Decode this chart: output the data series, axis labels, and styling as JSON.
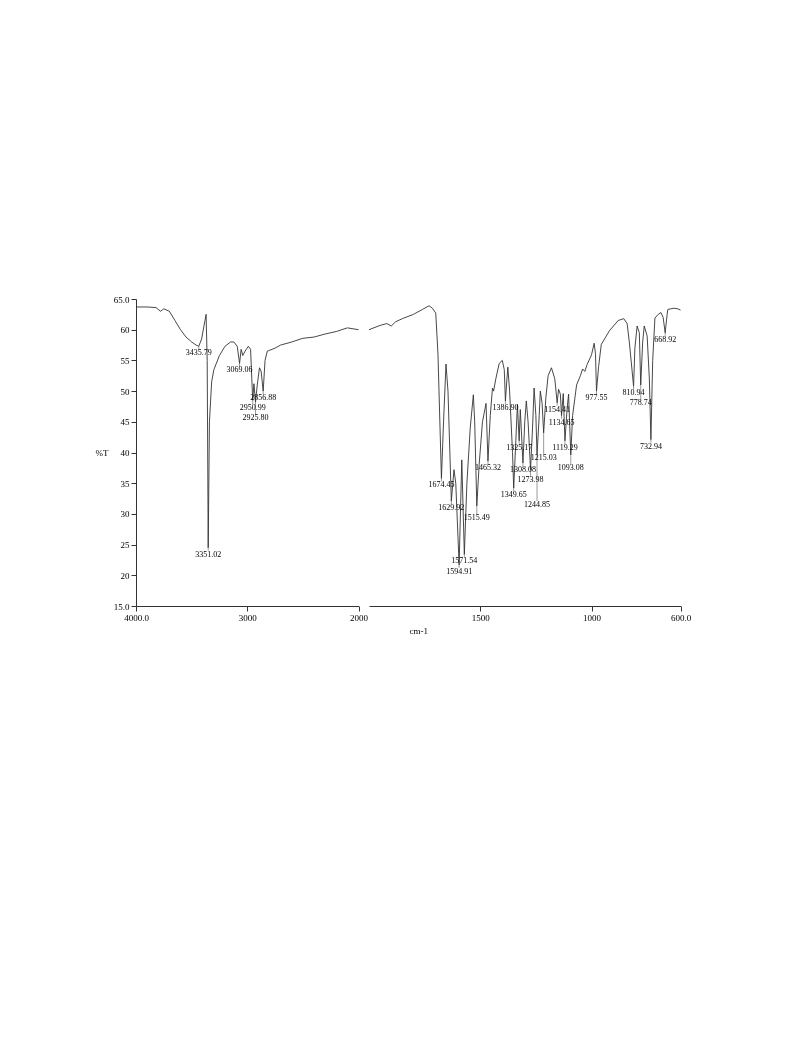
{
  "chart_data": [
    {
      "type": "line",
      "ylabel": "%T",
      "xlim": [
        4000,
        2000
      ],
      "ylim": [
        15,
        65
      ],
      "xticks": [
        {
          "value": 4000,
          "label": "4000.0"
        },
        3000,
        2000
      ],
      "yticks": [
        {
          "value": 15,
          "label": "15.0"
        },
        20,
        25,
        30,
        35,
        40,
        45,
        50,
        55,
        60,
        {
          "value": 65,
          "label": "65.0"
        }
      ],
      "grid": false,
      "marker": "none",
      "line_style": "solid",
      "series": [
        {
          "color": "#333333",
          "x": [
            4000,
            3900,
            3820,
            3780,
            3750,
            3700,
            3650,
            3600,
            3550,
            3500,
            3460,
            3435.79,
            3410,
            3380,
            3370,
            3360,
            3351.02,
            3340,
            3320,
            3300,
            3250,
            3200,
            3150,
            3120,
            3090,
            3069.06,
            3055,
            3040,
            3020,
            2990,
            2970,
            2950.99,
            2940,
            2925.8,
            2910,
            2890,
            2875,
            2856.88,
            2840,
            2820,
            2750,
            2700,
            2600,
            2500,
            2400,
            2300,
            2200,
            2100,
            2000
          ],
          "values": [
            63.7,
            63.7,
            63.6,
            63.0,
            63.4,
            63.0,
            61.5,
            60,
            58.8,
            58,
            57.5,
            57.3,
            58.5,
            61.5,
            62.5,
            55,
            24.5,
            45,
            51.5,
            53.5,
            55.8,
            57.3,
            58,
            58,
            57.3,
            54.5,
            56.8,
            55.8,
            56.5,
            57.3,
            56.8,
            48.5,
            51.2,
            48.2,
            51,
            53.8,
            53.2,
            50.0,
            55,
            56.5,
            57,
            57.5,
            58,
            58.6,
            58.8,
            59.3,
            59.7,
            60.3,
            60.0
          ]
        }
      ],
      "annotations": [
        {
          "text": "3435.79",
          "x": 3435.79,
          "y": 57.3
        },
        {
          "text": "3351.02",
          "x": 3351.02,
          "y": 24.5
        },
        {
          "text": "3069.06",
          "x": 3069.06,
          "y": 54.5
        },
        {
          "text": "2856.88",
          "x": 2856.88,
          "y": 50.0
        },
        {
          "text": "2950.99",
          "x": 2950.99,
          "y": 48.5
        },
        {
          "text": "2925.80",
          "x": 2925.8,
          "y": 48.2
        }
      ]
    },
    {
      "type": "line",
      "xlabel": "cm-1",
      "xlim": [
        2000,
        600
      ],
      "ylim": [
        15,
        65
      ],
      "tick_labels": "x",
      "xticks": [
        1500,
        1000,
        {
          "value": 600,
          "label": "600.0"
        }
      ],
      "grid": false,
      "marker": "none",
      "line_style": "solid",
      "series": [
        {
          "color": "#333333",
          "x": [
            2000,
            1950,
            1920,
            1900,
            1880,
            1850,
            1800,
            1760,
            1730,
            1715,
            1700,
            1690,
            1674.45,
            1665,
            1654,
            1645,
            1629.92,
            1618,
            1610,
            1594.91,
            1583,
            1571.54,
            1560,
            1545,
            1531,
            1525,
            1515.49,
            1505,
            1490,
            1474,
            1465.32,
            1455,
            1445,
            1440,
            1430,
            1415,
            1401,
            1392,
            1386.9,
            1380,
            1376,
            1368,
            1355,
            1349.65,
            1340,
            1333,
            1325.17,
            1320,
            1308.08,
            1300,
            1293,
            1285,
            1273.98,
            1265,
            1258,
            1250,
            1244.85,
            1235,
            1230,
            1222,
            1215.03,
            1205,
            1195,
            1180,
            1165,
            1154.41,
            1148,
            1140,
            1134.65,
            1127,
            1119.29,
            1110,
            1103,
            1093.08,
            1085,
            1067,
            1050,
            1040,
            1030,
            1020,
            1000,
            988,
            982,
            977.55,
            968,
            956,
            920,
            880,
            855,
            840,
            830,
            810.94,
            805,
            795,
            785,
            778.74,
            770,
            763,
            750,
            740,
            732.94,
            725,
            715,
            700,
            688,
            678,
            668.92,
            660,
            657,
            630,
            612,
            600
          ],
          "values": [
            60.0,
            60.7,
            61,
            60.6,
            61.3,
            61.8,
            62.5,
            63.3,
            63.9,
            63.5,
            62.7,
            56,
            35.8,
            45,
            54.4,
            50,
            32.1,
            37.2,
            35,
            21.7,
            38.8,
            23.4,
            35,
            44,
            49.4,
            45,
            31.3,
            38,
            45,
            48,
            38.6,
            46,
            50.5,
            50,
            52,
            54.5,
            55,
            53.5,
            48.4,
            52,
            53.9,
            50,
            40,
            34.2,
            42,
            47.8,
            41.9,
            47,
            38.3,
            45,
            48.4,
            45,
            37.2,
            44,
            50.5,
            46,
            39.6,
            46,
            50,
            48,
            43.2,
            49,
            52.5,
            53.8,
            52,
            48.1,
            50.3,
            49.5,
            46,
            49.6,
            41.9,
            47,
            49.5,
            39.6,
            46,
            51,
            52.5,
            53.6,
            53.2,
            54.3,
            55.9,
            57.8,
            56,
            50,
            54,
            57.6,
            59.8,
            61.5,
            61.8,
            61,
            58,
            50.8,
            57,
            60.6,
            59.5,
            51,
            58,
            60.6,
            59,
            52,
            42.1,
            55,
            61.9,
            62.5,
            62.8,
            62,
            59.5,
            62.5,
            63.3,
            63.5,
            63.4,
            63.2
          ]
        }
      ],
      "annotations": [
        {
          "text": "1674.45",
          "x": 1674.45,
          "y": 35.8
        },
        {
          "text": "1629.92",
          "x": 1629.92,
          "y": 32.1
        },
        {
          "text": "1594.91",
          "x": 1594.91,
          "y": 21.7
        },
        {
          "text": "1571.54",
          "x": 1571.54,
          "y": 23.4
        },
        {
          "text": "1515.49",
          "x": 1515.49,
          "y": 31.3
        },
        {
          "text": "1465.32",
          "x": 1465.32,
          "y": 38.6
        },
        {
          "text": "1386.90",
          "x": 1386.9,
          "y": 48.4
        },
        {
          "text": "1349.65",
          "x": 1349.65,
          "y": 34.2
        },
        {
          "text": "1325.17",
          "x": 1325.17,
          "y": 41.9
        },
        {
          "text": "1308.08",
          "x": 1308.08,
          "y": 38.3
        },
        {
          "text": "1273.98",
          "x": 1273.98,
          "y": 37.2
        },
        {
          "text": "1244.85",
          "x": 1244.85,
          "y": 39.6
        },
        {
          "text": "1215.03",
          "x": 1215.03,
          "y": 43.2
        },
        {
          "text": "1154.41",
          "x": 1154.41,
          "y": 48.1
        },
        {
          "text": "1134.65",
          "x": 1134.65,
          "y": 46
        },
        {
          "text": "1119.29",
          "x": 1119.29,
          "y": 41.9
        },
        {
          "text": "1093.08",
          "x": 1093.08,
          "y": 39.6
        },
        {
          "text": "977.55",
          "x": 977.55,
          "y": 50
        },
        {
          "text": "810.94",
          "x": 810.94,
          "y": 50.8
        },
        {
          "text": "778.74",
          "x": 778.74,
          "y": 51
        },
        {
          "text": "732.94",
          "x": 732.94,
          "y": 42.1
        },
        {
          "text": "668.92",
          "x": 668.92,
          "y": 59.5
        }
      ]
    }
  ]
}
